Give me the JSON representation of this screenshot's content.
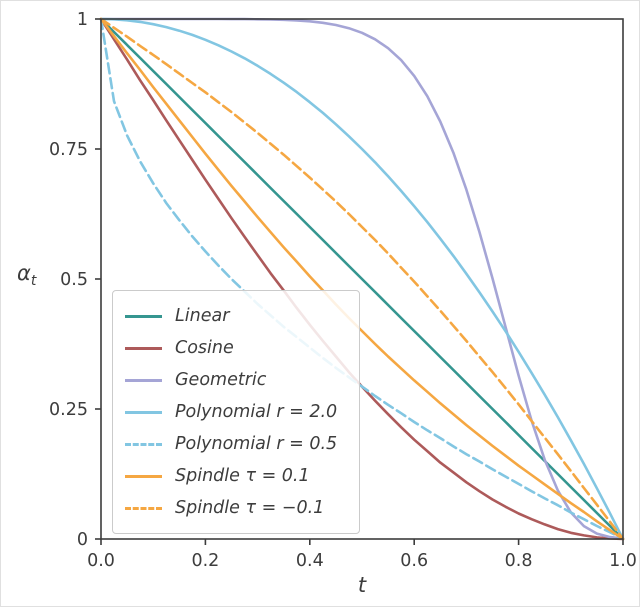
{
  "figure": {
    "xlabel": "t",
    "ylabel_main": "α",
    "ylabel_sub": "t",
    "text_color": "#3d3d3d",
    "axis_color": "#3c3c3c",
    "background": "#ffffff"
  },
  "chart_data": {
    "type": "line",
    "title": "",
    "xlabel": "t",
    "ylabel": "α_t",
    "xlim": [
      0,
      1
    ],
    "ylim": [
      0,
      1
    ],
    "grid": false,
    "legend_position": "lower left",
    "xticks": {
      "values": [
        0,
        0.2,
        0.4,
        0.6,
        0.8,
        1.0
      ],
      "labels": [
        "0.0",
        "0.2",
        "0.4",
        "0.6",
        "0.8",
        "1.0"
      ]
    },
    "yticks": {
      "values": [
        0,
        0.25,
        0.5,
        0.75,
        1
      ],
      "labels": [
        "0",
        "0.25",
        "0.5",
        "0.75",
        "1"
      ]
    },
    "x": [
      0,
      0.025,
      0.05,
      0.075,
      0.1,
      0.125,
      0.15,
      0.175,
      0.2,
      0.225,
      0.25,
      0.275,
      0.3,
      0.325,
      0.35,
      0.375,
      0.4,
      0.425,
      0.45,
      0.475,
      0.5,
      0.525,
      0.55,
      0.575,
      0.6,
      0.625,
      0.65,
      0.675,
      0.7,
      0.725,
      0.75,
      0.775,
      0.8,
      0.825,
      0.85,
      0.875,
      0.9,
      0.925,
      0.95,
      0.975,
      1
    ],
    "series": [
      {
        "name": "Linear",
        "color": "#359690",
        "style": "solid",
        "y": [
          1,
          0.975,
          0.95,
          0.925,
          0.9,
          0.875,
          0.85,
          0.825,
          0.8,
          0.775,
          0.75,
          0.725,
          0.7,
          0.675,
          0.65,
          0.625,
          0.6,
          0.575,
          0.55,
          0.525,
          0.5,
          0.475,
          0.45,
          0.425,
          0.4,
          0.375,
          0.35,
          0.325,
          0.3,
          0.275,
          0.25,
          0.225,
          0.2,
          0.175,
          0.15,
          0.125,
          0.1,
          0.075,
          0.05,
          0.025,
          0
        ]
      },
      {
        "name": "Cosine",
        "color": "#ad5a5a",
        "style": "solid",
        "y": [
          1,
          0.961,
          0.922,
          0.882,
          0.844,
          0.805,
          0.767,
          0.729,
          0.691,
          0.654,
          0.617,
          0.581,
          0.546,
          0.511,
          0.478,
          0.444,
          0.412,
          0.381,
          0.351,
          0.321,
          0.293,
          0.266,
          0.24,
          0.215,
          0.191,
          0.169,
          0.147,
          0.128,
          0.109,
          0.092,
          0.076,
          0.062,
          0.049,
          0.038,
          0.028,
          0.019,
          0.012,
          0.007,
          0.003,
          0.001,
          0
        ]
      },
      {
        "name": "Geometric",
        "color": "#a5a5d6",
        "style": "solid",
        "y": [
          1,
          1,
          1,
          1,
          1,
          1,
          1,
          1,
          1,
          1,
          0.9999,
          0.9998,
          0.9995,
          0.9991,
          0.9984,
          0.9973,
          0.9955,
          0.9927,
          0.9885,
          0.9823,
          0.9734,
          0.961,
          0.9438,
          0.9209,
          0.8906,
          0.8516,
          0.8026,
          0.7428,
          0.6718,
          0.5905,
          0.5012,
          0.4074,
          0.3142,
          0.2275,
          0.1525,
          0.0934,
          0.0513,
          0.0248,
          0.0103,
          0.0036,
          0.001
        ]
      },
      {
        "name": "Polynomial r = 2.0",
        "color": "#82c6e2",
        "style": "solid",
        "y": [
          1,
          0.9994,
          0.9975,
          0.9944,
          0.99,
          0.9844,
          0.9775,
          0.9694,
          0.96,
          0.9494,
          0.9375,
          0.9244,
          0.91,
          0.8944,
          0.8775,
          0.8594,
          0.84,
          0.8194,
          0.7975,
          0.7744,
          0.75,
          0.7244,
          0.6975,
          0.6694,
          0.64,
          0.6094,
          0.5775,
          0.5444,
          0.51,
          0.4744,
          0.4375,
          0.3994,
          0.36,
          0.3194,
          0.2775,
          0.2344,
          0.19,
          0.1444,
          0.0975,
          0.0494,
          0
        ]
      },
      {
        "name": "Polynomial r = 0.5",
        "color": "#82c6e2",
        "style": "dashed",
        "y": [
          1,
          0.842,
          0.776,
          0.726,
          0.684,
          0.646,
          0.613,
          0.582,
          0.553,
          0.526,
          0.5,
          0.476,
          0.452,
          0.43,
          0.408,
          0.388,
          0.368,
          0.348,
          0.329,
          0.311,
          0.293,
          0.275,
          0.258,
          0.242,
          0.225,
          0.209,
          0.194,
          0.178,
          0.163,
          0.149,
          0.134,
          0.12,
          0.106,
          0.092,
          0.078,
          0.065,
          0.051,
          0.038,
          0.025,
          0.013,
          0
        ]
      },
      {
        "name": "Spindle τ = 0.1",
        "color": "#f5a742",
        "style": "solid",
        "y": [
          1,
          0.967,
          0.934,
          0.902,
          0.869,
          0.837,
          0.805,
          0.773,
          0.741,
          0.71,
          0.679,
          0.649,
          0.619,
          0.59,
          0.561,
          0.533,
          0.505,
          0.478,
          0.451,
          0.425,
          0.4,
          0.375,
          0.351,
          0.328,
          0.305,
          0.283,
          0.261,
          0.24,
          0.219,
          0.199,
          0.179,
          0.16,
          0.141,
          0.123,
          0.105,
          0.087,
          0.069,
          0.052,
          0.034,
          0.017,
          0
        ]
      },
      {
        "name": "Spindle τ = −0.1",
        "color": "#f5a742",
        "style": "dashed",
        "y": [
          1,
          0.983,
          0.966,
          0.948,
          0.931,
          0.913,
          0.895,
          0.877,
          0.859,
          0.84,
          0.821,
          0.801,
          0.781,
          0.76,
          0.739,
          0.717,
          0.695,
          0.672,
          0.649,
          0.625,
          0.6,
          0.575,
          0.549,
          0.522,
          0.495,
          0.467,
          0.439,
          0.41,
          0.381,
          0.351,
          0.321,
          0.29,
          0.259,
          0.227,
          0.195,
          0.163,
          0.131,
          0.098,
          0.066,
          0.033,
          0
        ]
      }
    ]
  }
}
